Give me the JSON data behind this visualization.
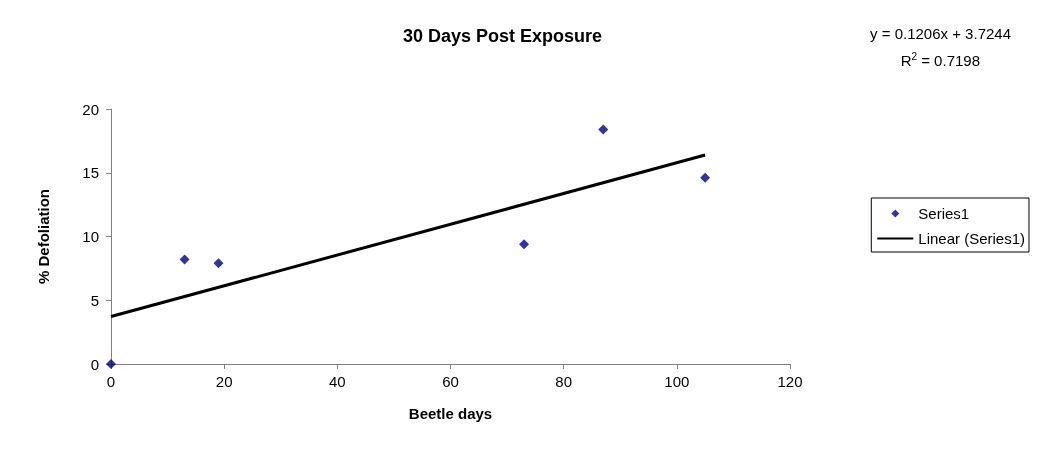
{
  "chart_data": {
    "type": "scatter",
    "title": "30 Days Post Exposure",
    "xlabel": "Beetle days",
    "ylabel": "% Defoliation",
    "series": [
      {
        "name": "Series1",
        "color": "#000080",
        "x": [
          0,
          13,
          19,
          73,
          87,
          105
        ],
        "values": [
          0,
          8.2,
          7.9,
          9.4,
          18.4,
          14.6
        ],
        "marker": "diamond"
      },
      {
        "name": "Linear (Series1)",
        "type": "line",
        "color": "#000000",
        "x": [
          0,
          105
        ],
        "values": [
          3.72,
          16.39
        ],
        "marker": "none",
        "line_style": "solid"
      }
    ],
    "annotations": [
      "y = 0.1206x + 3.7244",
      "R$^{2}$ = 0.7198"
    ],
    "xlim": [
      0,
      120
    ],
    "xticks": [
      0,
      20,
      40,
      60,
      80,
      100,
      120
    ],
    "ylim": [
      0,
      20
    ],
    "yticks": [
      0,
      5,
      10,
      15,
      20
    ],
    "grid": false,
    "legend": "right"
  }
}
